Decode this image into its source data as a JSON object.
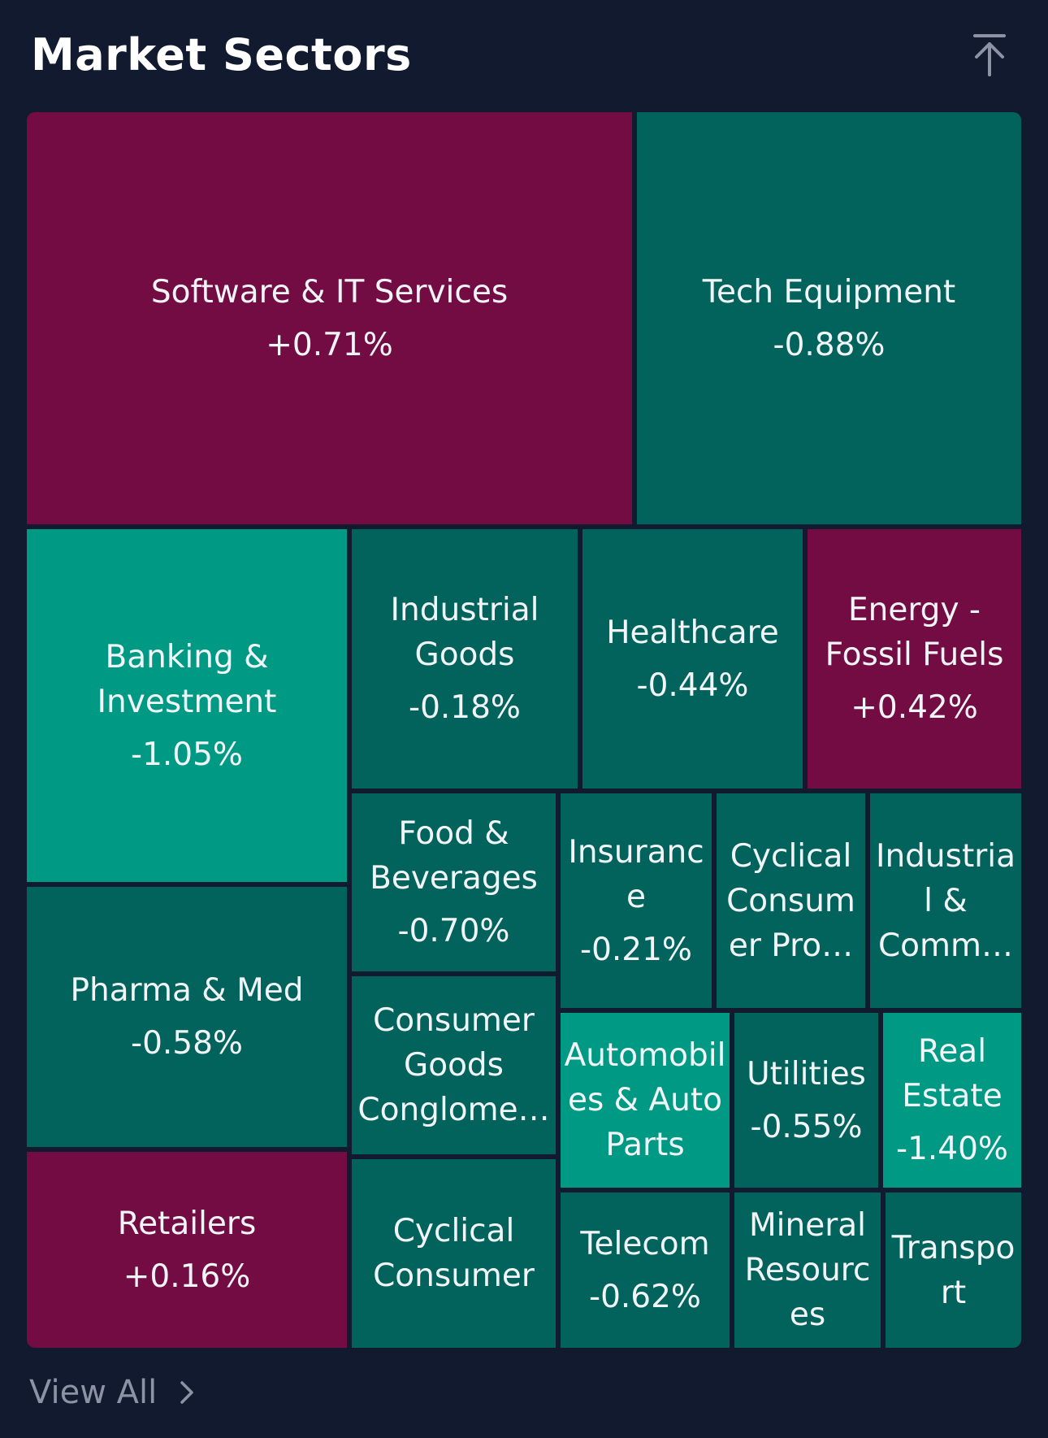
{
  "header": {
    "title": "Market Sectors"
  },
  "icons": {
    "collapse": "arrow-up-to-line-icon",
    "view_all": "chevron-right-icon"
  },
  "colors": {
    "background": "#121a30",
    "positive": "#720c43",
    "negative": "#02635d",
    "negative_strong": "#009a84"
  },
  "sectors": [
    {
      "name": "Software & IT Services",
      "change": "+0.71%"
    },
    {
      "name": "Tech Equipment",
      "change": "-0.88%"
    },
    {
      "name": "Banking &\nInvestment",
      "change": "-1.05%"
    },
    {
      "name": "Industrial\nGoods",
      "change": "-0.18%"
    },
    {
      "name": "Healthcare",
      "change": "-0.44%"
    },
    {
      "name": "Energy -\nFossil Fuels",
      "change": "+0.42%"
    },
    {
      "name": "Food &\nBeverages",
      "change": "-0.70%"
    },
    {
      "name": "Insuranc\ne",
      "change": "-0.21%"
    },
    {
      "name": "Cyclical\nConsum\ner Pro…",
      "change": ""
    },
    {
      "name": "Industria\nl &\nComm…",
      "change": ""
    },
    {
      "name": "Pharma & Med",
      "change": "-0.58%"
    },
    {
      "name": "Consumer\nGoods\nConglome…",
      "change": ""
    },
    {
      "name": "Automobil\nes & Auto\nParts",
      "change": ""
    },
    {
      "name": "Utilities",
      "change": "-0.55%"
    },
    {
      "name": "Real\nEstate",
      "change": "-1.40%"
    },
    {
      "name": "Retailers",
      "change": "+0.16%"
    },
    {
      "name": "Cyclical\nConsumer",
      "change": ""
    },
    {
      "name": "Telecom",
      "change": "-0.62%"
    },
    {
      "name": "Mineral\nResourc\nes",
      "change": ""
    },
    {
      "name": "Transpo\nrt",
      "change": ""
    }
  ],
  "footer": {
    "view_all_label": "View All"
  }
}
